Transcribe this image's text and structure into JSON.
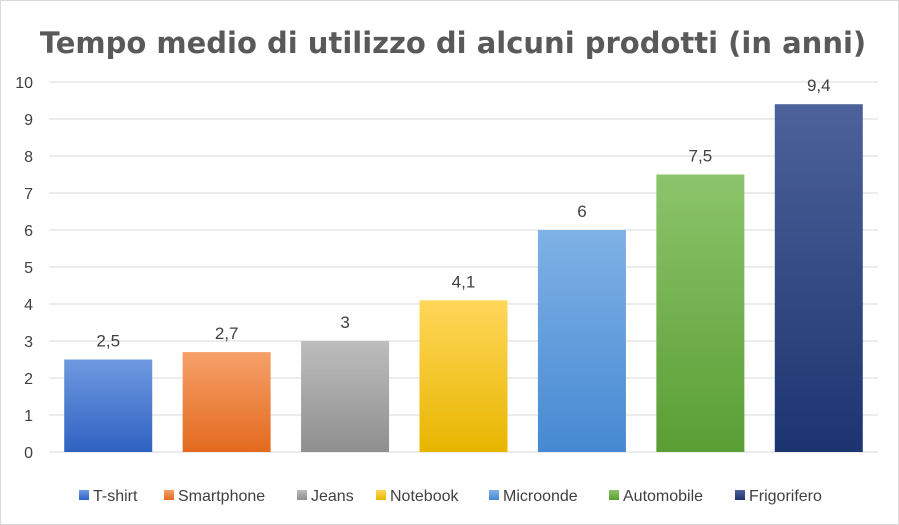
{
  "chart_data": {
    "type": "bar",
    "title": "Tempo medio di utilizzo di alcuni prodotti (in anni)",
    "xlabel": "",
    "ylabel": "",
    "ylim": [
      0,
      10
    ],
    "yticks": [
      0,
      1,
      2,
      3,
      4,
      5,
      6,
      7,
      8,
      9,
      10
    ],
    "grid": true,
    "legend": "bottom",
    "categories": [
      "T-shirt",
      "Smartphone",
      "Jeans",
      "Notebook",
      "Microonde",
      "Automobile",
      "Frigorifero"
    ],
    "values": [
      2.5,
      2.7,
      3,
      4.1,
      6,
      7.5,
      9.4
    ],
    "data_labels": [
      "2,5",
      "2,7",
      "3",
      "4,1",
      "6",
      "7,5",
      "9,4"
    ],
    "colors": [
      {
        "light": "#6f9ae0",
        "dark": "#2f62c2"
      },
      {
        "light": "#f6a06a",
        "dark": "#e36a1e"
      },
      {
        "light": "#bdbdbd",
        "dark": "#8f8f8f"
      },
      {
        "light": "#ffd75a",
        "dark": "#e8b600"
      },
      {
        "light": "#7fb2e6",
        "dark": "#4689d2"
      },
      {
        "light": "#8cc46b",
        "dark": "#5a9e34"
      },
      {
        "light": "#4d629a",
        "dark": "#1c3470"
      }
    ]
  }
}
